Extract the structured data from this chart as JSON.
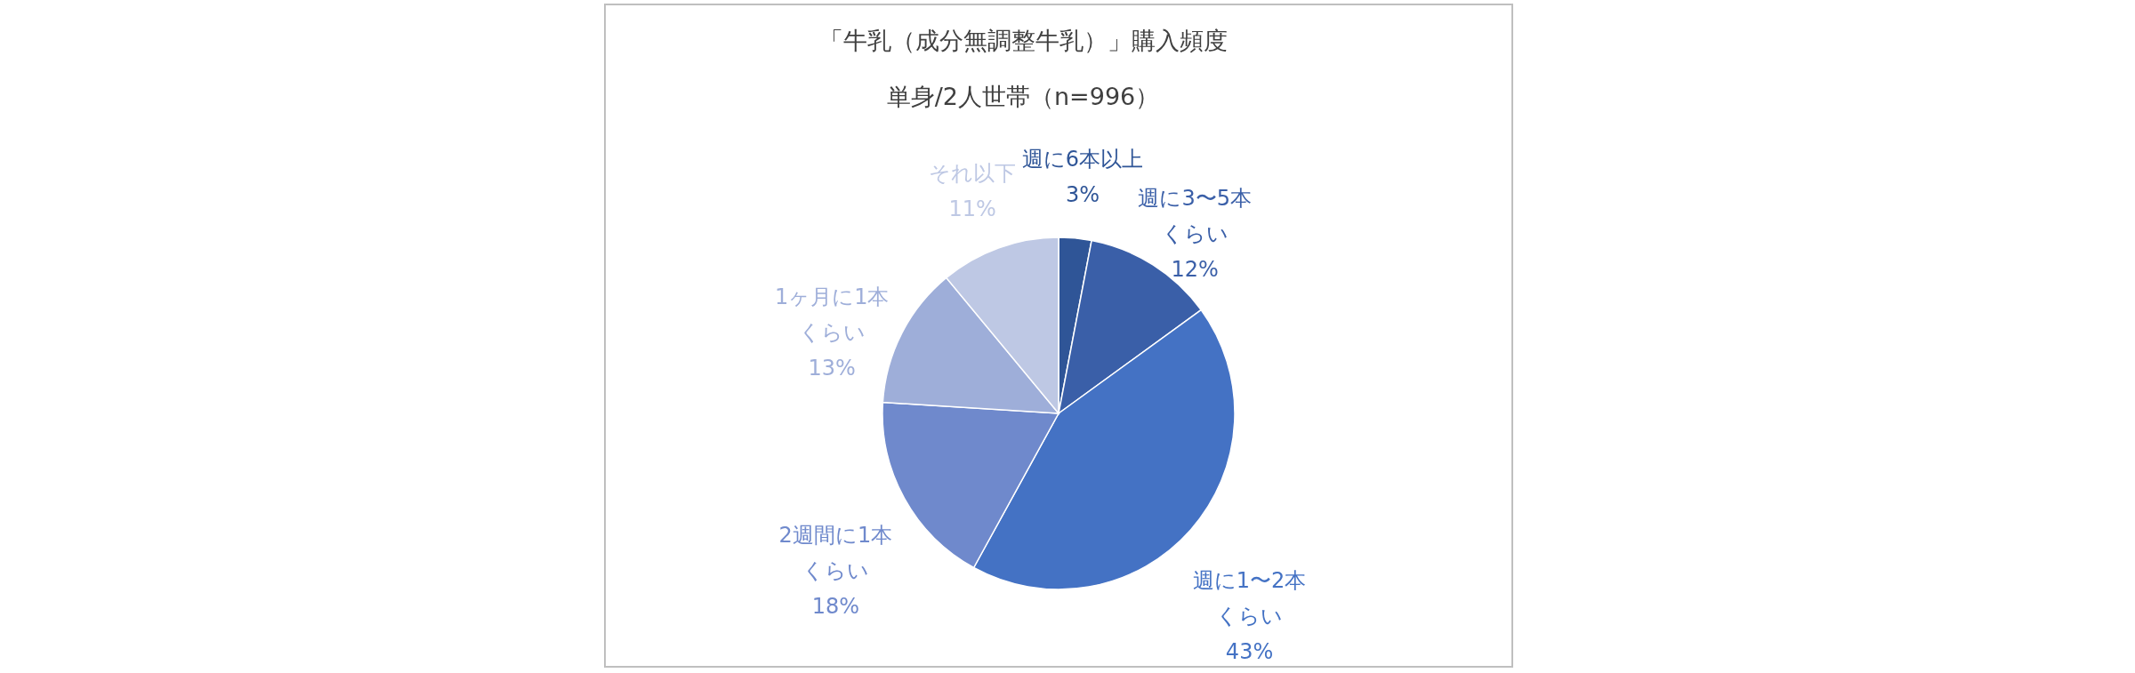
{
  "chart_data": {
    "type": "pie",
    "title": "「牛乳（成分無調整牛乳）」購入頻度",
    "subtitle": "単身/2人世帯（n=996）",
    "categories": [
      "週に6本以上",
      "週に3〜5本くらい",
      "週に1〜2本くらい",
      "2週間に1本くらい",
      "1ヶ月に1本くらい",
      "それ以下"
    ],
    "values": [
      3,
      12,
      43,
      18,
      13,
      11
    ],
    "value_labels": [
      "3%",
      "12%",
      "43%",
      "18%",
      "13%",
      "11%"
    ],
    "colors": [
      "#2f5597",
      "#3a5fa8",
      "#4472c4",
      "#6f89cc",
      "#9eaed9",
      "#bec8e4"
    ]
  }
}
